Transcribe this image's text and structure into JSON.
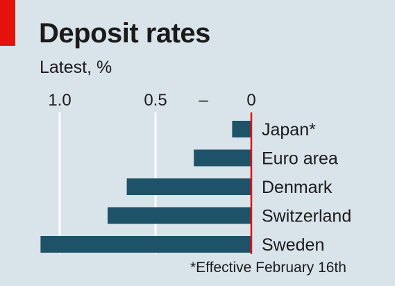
{
  "chart_data": {
    "type": "bar",
    "orientation": "horizontal",
    "title": "Deposit rates",
    "subtitle": "Latest, %",
    "footnote": "*Effective February 16th",
    "categories": [
      "Japan*",
      "Euro area",
      "Denmark",
      "Switzerland",
      "Sweden"
    ],
    "values": [
      -0.1,
      -0.3,
      -0.65,
      -0.75,
      -1.1
    ],
    "xlim": [
      -1.1,
      0
    ],
    "axis_reversed": true,
    "ticks": [
      {
        "value": -1.0,
        "label": "1.0"
      },
      {
        "value": -0.5,
        "label": "0.5"
      },
      {
        "value": -0.25,
        "label": "–"
      },
      {
        "value": 0,
        "label": "0"
      }
    ],
    "grid": true,
    "colors": {
      "bar": "#1d5268",
      "zero_line": "#e3120b",
      "grid": "#ffffff",
      "background": "#d9e3ea",
      "accent": "#e3120b"
    }
  }
}
